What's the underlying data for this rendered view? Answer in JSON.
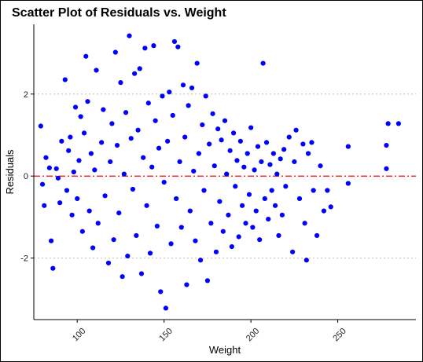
{
  "chart_data": {
    "type": "scatter",
    "title": "Scatter Plot of Residuals vs. Weight",
    "xlabel": "Weight",
    "ylabel": "Residuals",
    "xlim": [
      75,
      295
    ],
    "ylim": [
      -3.5,
      3.7
    ],
    "xticks": [
      100,
      150,
      200,
      250
    ],
    "xtick_labels": [
      "100",
      "150",
      "200",
      "250"
    ],
    "yticks": [
      -2,
      0,
      2
    ],
    "ytick_labels": [
      "-2",
      "0",
      "2"
    ],
    "gridlines_y": [
      -2,
      2
    ],
    "reference_line": {
      "y": 0,
      "style": "dashed",
      "color": "#ff0000"
    },
    "point_color": "#0000ff",
    "grid": false,
    "x_tick_rotation": -45,
    "points": [
      [
        79,
        1.22
      ],
      [
        80,
        -0.2
      ],
      [
        81,
        -0.72
      ],
      [
        82,
        0.45
      ],
      [
        84,
        0.2
      ],
      [
        85,
        -1.58
      ],
      [
        86,
        -2.25
      ],
      [
        88,
        0.18
      ],
      [
        89,
        -0.05
      ],
      [
        90,
        -0.65
      ],
      [
        91,
        0.85
      ],
      [
        93,
        2.35
      ],
      [
        94,
        -0.35
      ],
      [
        95,
        0.62
      ],
      [
        96,
        0.95
      ],
      [
        97,
        -0.95
      ],
      [
        98,
        0.1
      ],
      [
        99,
        1.68
      ],
      [
        100,
        -0.55
      ],
      [
        101,
        0.38
      ],
      [
        102,
        1.45
      ],
      [
        103,
        -1.35
      ],
      [
        104,
        1.05
      ],
      [
        105,
        2.92
      ],
      [
        106,
        1.82
      ],
      [
        107,
        -0.85
      ],
      [
        108,
        0.55
      ],
      [
        109,
        -1.75
      ],
      [
        110,
        0.15
      ],
      [
        111,
        2.58
      ],
      [
        112,
        -1.15
      ],
      [
        114,
        0.82
      ],
      [
        115,
        1.62
      ],
      [
        116,
        -0.48
      ],
      [
        118,
        -2.12
      ],
      [
        119,
        0.35
      ],
      [
        120,
        1.28
      ],
      [
        121,
        -1.55
      ],
      [
        122,
        3.02
      ],
      [
        123,
        0.75
      ],
      [
        124,
        -0.9
      ],
      [
        125,
        2.28
      ],
      [
        126,
        -2.45
      ],
      [
        127,
        0.05
      ],
      [
        128,
        1.55
      ],
      [
        129,
        -1.95
      ],
      [
        130,
        3.42
      ],
      [
        131,
        0.92
      ],
      [
        132,
        -0.32
      ],
      [
        133,
        2.5
      ],
      [
        134,
        -1.45
      ],
      [
        135,
        1.12
      ],
      [
        136,
        2.62
      ],
      [
        137,
        -2.38
      ],
      [
        138,
        0.45
      ],
      [
        139,
        3.12
      ],
      [
        140,
        -0.72
      ],
      [
        141,
        1.78
      ],
      [
        142,
        -1.88
      ],
      [
        143,
        0.22
      ],
      [
        144,
        3.18
      ],
      [
        145,
        1.35
      ],
      [
        146,
        -1.22
      ],
      [
        147,
        0.68
      ],
      [
        148,
        -2.82
      ],
      [
        149,
        1.95
      ],
      [
        150,
        -0.15
      ],
      [
        151,
        -3.22
      ],
      [
        152,
        0.85
      ],
      [
        153,
        2.05
      ],
      [
        154,
        -1.65
      ],
      [
        155,
        1.48
      ],
      [
        156,
        3.28
      ],
      [
        157,
        -0.55
      ],
      [
        158,
        3.15
      ],
      [
        159,
        0.35
      ],
      [
        160,
        -1.25
      ],
      [
        161,
        2.22
      ],
      [
        162,
        0.95
      ],
      [
        163,
        -2.65
      ],
      [
        164,
        1.72
      ],
      [
        165,
        -0.85
      ],
      [
        166,
        2.15
      ],
      [
        167,
        0.12
      ],
      [
        168,
        -1.58
      ],
      [
        169,
        2.75
      ],
      [
        170,
        0.55
      ],
      [
        171,
        -2.05
      ],
      [
        172,
        1.25
      ],
      [
        173,
        -0.35
      ],
      [
        174,
        1.95
      ],
      [
        175,
        -2.55
      ],
      [
        176,
        0.78
      ],
      [
        177,
        -1.15
      ],
      [
        178,
        1.52
      ],
      [
        179,
        0.25
      ],
      [
        180,
        -1.85
      ],
      [
        181,
        1.15
      ],
      [
        182,
        -0.62
      ],
      [
        183,
        0.88
      ],
      [
        184,
        -1.35
      ],
      [
        185,
        1.35
      ],
      [
        186,
        0.05
      ],
      [
        187,
        -0.95
      ],
      [
        188,
        0.62
      ],
      [
        189,
        -1.72
      ],
      [
        190,
        1.05
      ],
      [
        191,
        -0.25
      ],
      [
        192,
        0.38
      ],
      [
        193,
        -1.48
      ],
      [
        194,
        0.85
      ],
      [
        195,
        -0.72
      ],
      [
        196,
        0.22
      ],
      [
        197,
        -1.15
      ],
      [
        198,
        0.55
      ],
      [
        199,
        -0.45
      ],
      [
        200,
        1.18
      ],
      [
        201,
        -1.25
      ],
      [
        202,
        0.15
      ],
      [
        203,
        -0.85
      ],
      [
        204,
        0.72
      ],
      [
        205,
        -1.55
      ],
      [
        206,
        0.35
      ],
      [
        207,
        2.75
      ],
      [
        208,
        -0.55
      ],
      [
        209,
        0.82
      ],
      [
        210,
        -1.05
      ],
      [
        211,
        0.28
      ],
      [
        212,
        -0.35
      ],
      [
        213,
        0.55
      ],
      [
        214,
        -0.72
      ],
      [
        215,
        0.05
      ],
      [
        216,
        -1.45
      ],
      [
        217,
        0.42
      ],
      [
        218,
        -0.95
      ],
      [
        219,
        0.65
      ],
      [
        220,
        -0.25
      ],
      [
        222,
        0.95
      ],
      [
        224,
        -1.85
      ],
      [
        225,
        0.35
      ],
      [
        226,
        1.12
      ],
      [
        228,
        -0.55
      ],
      [
        230,
        0.78
      ],
      [
        231,
        -1.15
      ],
      [
        232,
        -2.05
      ],
      [
        233,
        0.55
      ],
      [
        235,
        0.82
      ],
      [
        236,
        -0.35
      ],
      [
        238,
        -1.45
      ],
      [
        240,
        0.25
      ],
      [
        242,
        -0.85
      ],
      [
        244,
        -0.35
      ],
      [
        246,
        -0.75
      ],
      [
        256,
        0.72
      ],
      [
        256,
        -0.18
      ],
      [
        278,
        0.18
      ],
      [
        278,
        0.75
      ],
      [
        279,
        1.28
      ],
      [
        285,
        1.28
      ]
    ]
  }
}
